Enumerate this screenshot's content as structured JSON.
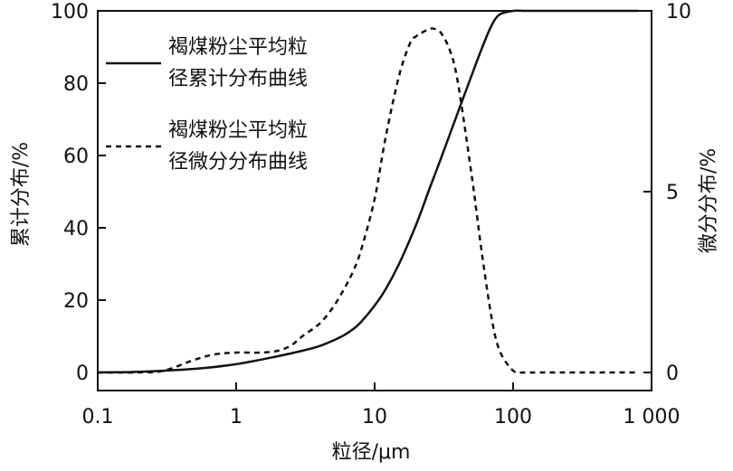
{
  "chart_data": {
    "type": "line",
    "x_scale": "log",
    "xlabel": "粒径/μm",
    "ylabel_left": "累计分布/%",
    "ylabel_right": "微分分布/%",
    "xlim": [
      0.1,
      1000
    ],
    "ylim_left": [
      -5,
      100
    ],
    "ylim_right": [
      -0.5,
      10
    ],
    "x_ticks": [
      0.1,
      1,
      10,
      100,
      1000
    ],
    "x_tick_labels": [
      "0.1",
      "1",
      "10",
      "100",
      "1 000"
    ],
    "y_left_ticks": [
      0,
      20,
      40,
      60,
      80,
      100
    ],
    "y_left_tick_labels": [
      "0",
      "20",
      "40",
      "60",
      "80",
      "100"
    ],
    "y_right_ticks": [
      0,
      5,
      10
    ],
    "y_right_tick_labels": [
      "0",
      "5",
      "10"
    ],
    "grid": false,
    "legend_position": "top-left",
    "series": [
      {
        "name": "褐煤粉尘平均粒径累计分布曲线",
        "axis": "left",
        "style": "solid",
        "color": "#111111",
        "x": [
          0.1,
          0.2,
          0.5,
          1,
          2,
          3,
          4,
          5,
          6,
          7,
          8,
          10,
          12,
          15,
          20,
          25,
          30,
          40,
          50,
          60,
          70,
          80,
          100,
          120,
          200,
          500,
          800
        ],
        "y": [
          0,
          0.2,
          1,
          2.3,
          4.5,
          6,
          7.3,
          8.8,
          10.3,
          12,
          14,
          18.5,
          23,
          30,
          41,
          51,
          59,
          72,
          82,
          90,
          96,
          99,
          100,
          100,
          100,
          100,
          100
        ]
      },
      {
        "name": "褐煤粉尘平均粒径微分分布曲线",
        "axis": "right",
        "style": "dashed",
        "color": "#111111",
        "x": [
          0.1,
          0.2,
          0.3,
          0.5,
          0.7,
          1,
          1.5,
          2,
          2.5,
          3,
          4,
          5,
          6,
          7,
          8,
          10,
          12,
          15,
          18,
          20,
          22,
          25,
          27,
          30,
          35,
          40,
          50,
          55,
          60,
          70,
          80,
          100,
          120,
          150,
          200,
          500,
          800
        ],
        "y": [
          0,
          0,
          0.05,
          0.35,
          0.5,
          0.55,
          0.55,
          0.6,
          0.75,
          1,
          1.35,
          1.8,
          2.3,
          2.8,
          3.4,
          4.8,
          6.5,
          8.2,
          9.1,
          9.3,
          9.4,
          9.5,
          9.5,
          9.4,
          8.9,
          8,
          5.5,
          4.3,
          3.2,
          1.5,
          0.6,
          0.05,
          0,
          0,
          0,
          0,
          0
        ]
      }
    ]
  },
  "legend": {
    "item1_line1": "褐煤粉尘平均粒",
    "item1_line2": "径累计分布曲线",
    "item2_line1": "褐煤粉尘平均粒",
    "item2_line2": "径微分分布曲线"
  }
}
